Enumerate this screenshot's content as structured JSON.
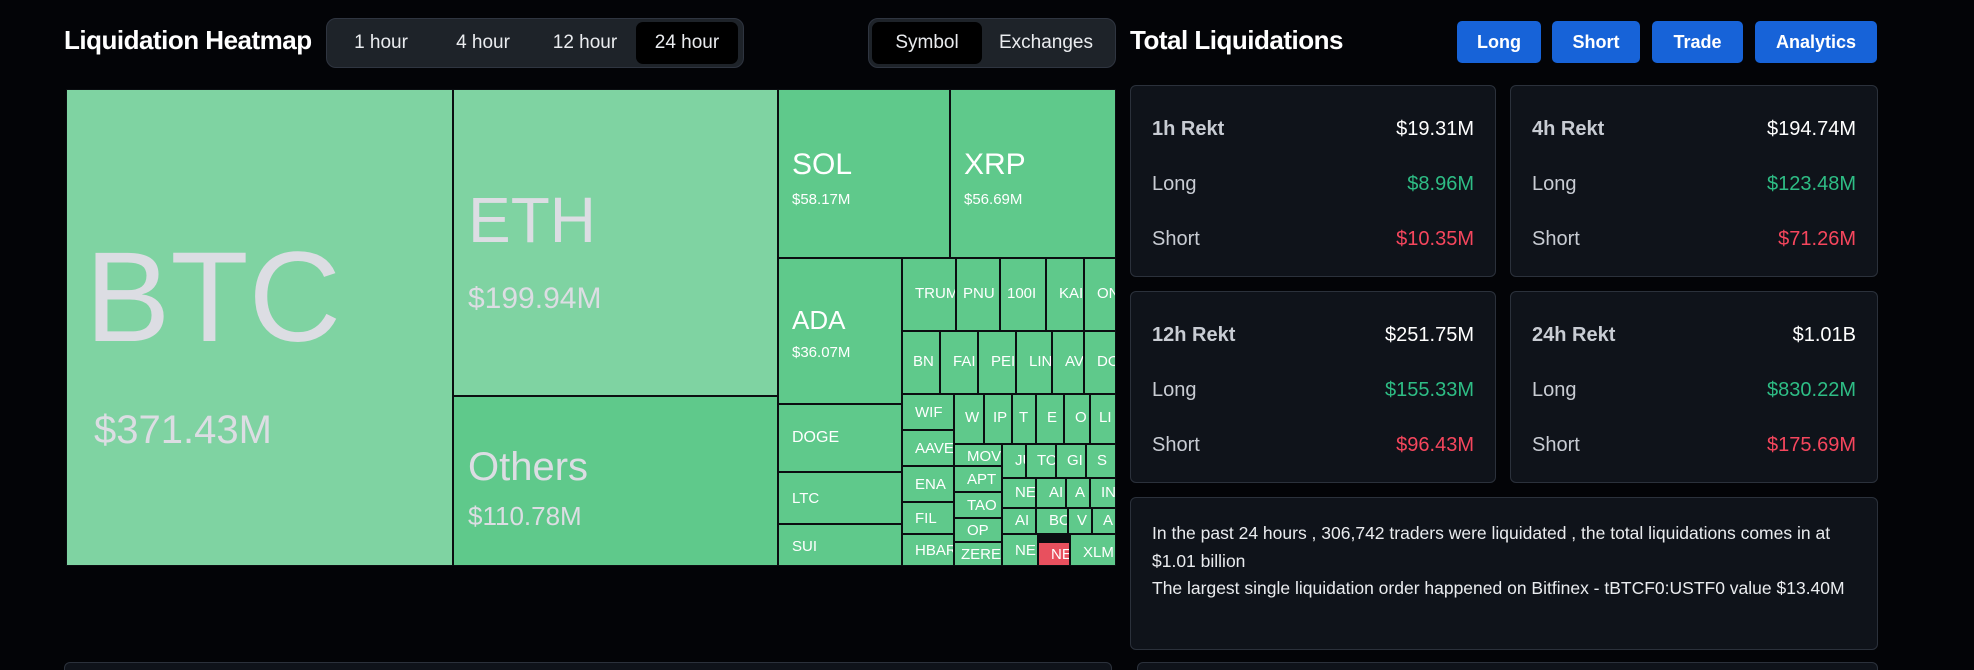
{
  "heatmap": {
    "title": "Liquidation Heatmap",
    "time_options": [
      "1 hour",
      "4 hour",
      "12 hour",
      "24 hour"
    ],
    "time_selected": "24 hour",
    "view_options": [
      "Symbol",
      "Exchanges"
    ],
    "view_selected": "Symbol"
  },
  "colors": {
    "tile_light": "#7fd3a2",
    "tile_mid": "#5fc98b",
    "tile_red": "#e8505e",
    "label_big": "#dcdde3",
    "label_small": "#ffffff",
    "long": "#2ebd85",
    "short": "#f6465d",
    "button": "#1763d8"
  },
  "treemap_tiles": [
    {
      "symbol": "BTC",
      "value": "$371.43M"
    },
    {
      "symbol": "ETH",
      "value": "$199.94M"
    },
    {
      "symbol": "Others",
      "value": "$110.78M"
    },
    {
      "symbol": "SOL",
      "value": "$58.17M"
    },
    {
      "symbol": "XRP",
      "value": "$56.69M"
    },
    {
      "symbol": "ADA",
      "value": "$36.07M"
    },
    {
      "symbol": "DOGE",
      "value": ""
    },
    {
      "symbol": "LTC",
      "value": ""
    },
    {
      "symbol": "SUI",
      "value": ""
    },
    {
      "symbol": "TRUM",
      "value": ""
    },
    {
      "symbol": "PNU",
      "value": ""
    },
    {
      "symbol": "100I",
      "value": ""
    },
    {
      "symbol": "KAI",
      "value": ""
    },
    {
      "symbol": "ON",
      "value": ""
    },
    {
      "symbol": "BN",
      "value": ""
    },
    {
      "symbol": "FAI",
      "value": ""
    },
    {
      "symbol": "PEI",
      "value": ""
    },
    {
      "symbol": "LIN",
      "value": ""
    },
    {
      "symbol": "AV",
      "value": ""
    },
    {
      "symbol": "DO",
      "value": ""
    },
    {
      "symbol": "WIF",
      "value": ""
    },
    {
      "symbol": "W",
      "value": ""
    },
    {
      "symbol": "IP",
      "value": ""
    },
    {
      "symbol": "T",
      "value": ""
    },
    {
      "symbol": "E",
      "value": ""
    },
    {
      "symbol": "O",
      "value": ""
    },
    {
      "symbol": "LI",
      "value": ""
    },
    {
      "symbol": "AAVE",
      "value": ""
    },
    {
      "symbol": "MOV",
      "value": ""
    },
    {
      "symbol": "JU",
      "value": ""
    },
    {
      "symbol": "TO",
      "value": ""
    },
    {
      "symbol": "GI",
      "value": ""
    },
    {
      "symbol": "S",
      "value": ""
    },
    {
      "symbol": "ENA",
      "value": ""
    },
    {
      "symbol": "APT",
      "value": ""
    },
    {
      "symbol": "NE",
      "value": ""
    },
    {
      "symbol": "AI",
      "value": ""
    },
    {
      "symbol": "A",
      "value": ""
    },
    {
      "symbol": "IN",
      "value": ""
    },
    {
      "symbol": "TAO",
      "value": ""
    },
    {
      "symbol": "FIL",
      "value": ""
    },
    {
      "symbol": "OP",
      "value": ""
    },
    {
      "symbol": "AI",
      "value": ""
    },
    {
      "symbol": "BO",
      "value": ""
    },
    {
      "symbol": "V",
      "value": ""
    },
    {
      "symbol": "A",
      "value": ""
    },
    {
      "symbol": "HBAR",
      "value": ""
    },
    {
      "symbol": "ZERE",
      "value": ""
    },
    {
      "symbol": "NE",
      "value": ""
    },
    {
      "symbol": "NE",
      "value": ""
    },
    {
      "symbol": "XLM",
      "value": ""
    }
  ],
  "totals": {
    "title": "Total Liquidations",
    "buttons": [
      "Long",
      "Short",
      "Trade",
      "Analytics"
    ],
    "cards": [
      {
        "label": "1h Rekt",
        "total": "$19.31M",
        "long_label": "Long",
        "long": "$8.96M",
        "short_label": "Short",
        "short": "$10.35M"
      },
      {
        "label": "4h Rekt",
        "total": "$194.74M",
        "long_label": "Long",
        "long": "$123.48M",
        "short_label": "Short",
        "short": "$71.26M"
      },
      {
        "label": "12h Rekt",
        "total": "$251.75M",
        "long_label": "Long",
        "long": "$155.33M",
        "short_label": "Short",
        "short": "$96.43M"
      },
      {
        "label": "24h Rekt",
        "total": "$1.01B",
        "long_label": "Long",
        "long": "$830.22M",
        "short_label": "Short",
        "short": "$175.69M"
      }
    ],
    "summary_line1": "In the past 24 hours , 306,742 traders were liquidated , the total liquidations comes in at $1.01 billion",
    "summary_line2": "The largest single liquidation order happened on Bitfinex - tBTCF0:USTF0 value $13.40M"
  }
}
